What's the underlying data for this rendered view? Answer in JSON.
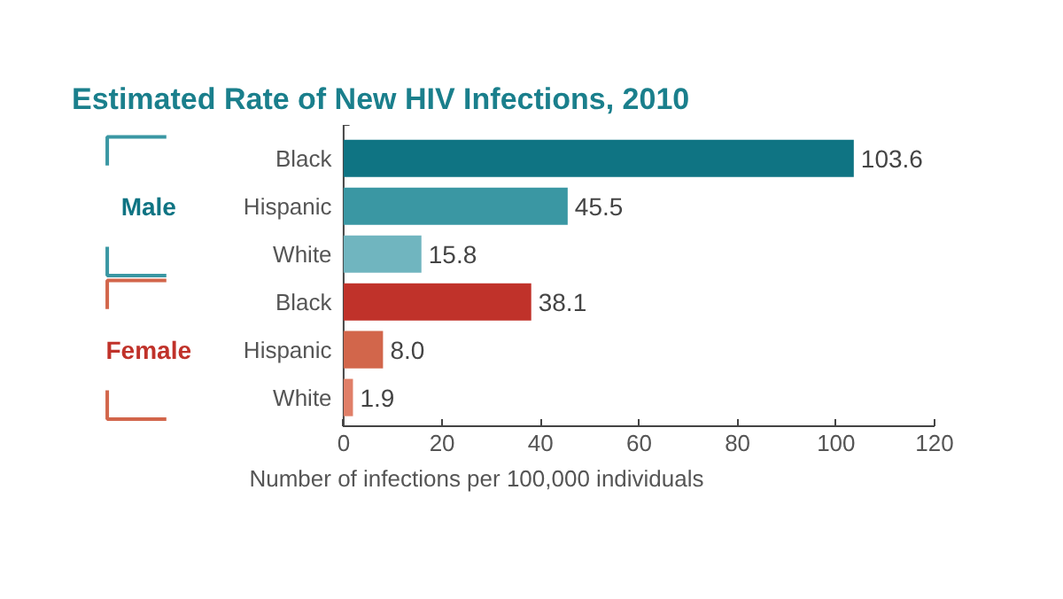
{
  "chart_data": {
    "type": "bar",
    "orientation": "horizontal",
    "title": "Estimated Rate of New HIV Infections, 2010",
    "categories": [
      "Black",
      "Hispanic",
      "White",
      "Black",
      "Hispanic",
      "White"
    ],
    "values": [
      103.6,
      45.5,
      15.8,
      38.1,
      8.0,
      1.9
    ],
    "colors": [
      "#0f7483",
      "#3a97a3",
      "#70b5bf",
      "#c0322a",
      "#d2664b",
      "#e07f68"
    ],
    "xlim": [
      0,
      120
    ],
    "xticks": [
      0,
      20,
      40,
      60,
      80,
      100,
      120
    ],
    "xlabel": "Number of infections per 100,000 individuals",
    "annotations": [
      "Male",
      "Female"
    ],
    "value_labels": [
      "103.6",
      "45.5",
      "15.8",
      "38.1",
      "8.0",
      "1.9"
    ],
    "grid": false
  }
}
